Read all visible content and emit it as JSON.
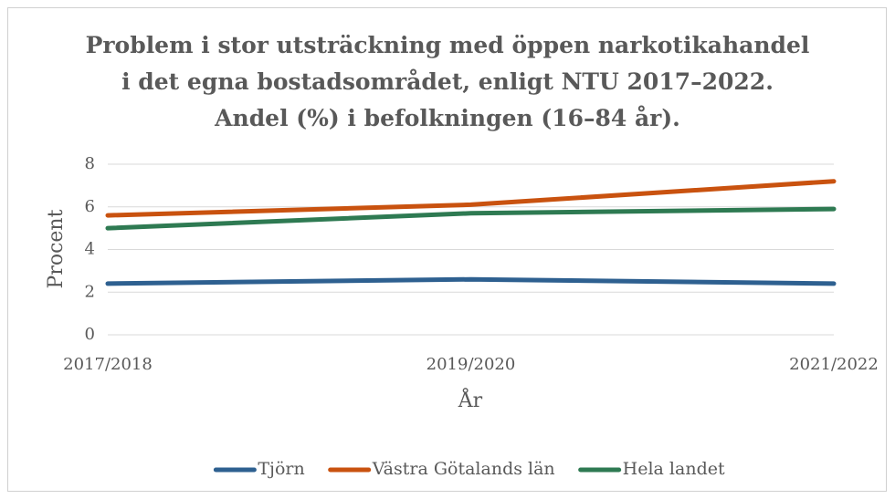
{
  "chart_data": {
    "type": "line",
    "title": "Problem i stor utsträckning med öppen narkotikahandel i det egna bostadsområdet, enligt NTU 2017–2022. Andel (%) i befolkningen (16–84 år).",
    "x_label": "År",
    "y_label": "Procent",
    "categories": [
      "2017/2018",
      "2019/2020",
      "2021/2022"
    ],
    "series": [
      {
        "name": "Tjörn",
        "color": "#2e6090",
        "values": [
          2.4,
          2.6,
          2.4
        ]
      },
      {
        "name": "Västra Götalands län",
        "color": "#c9520f",
        "values": [
          5.6,
          6.1,
          7.2
        ]
      },
      {
        "name": "Hela landet",
        "color": "#2e7a52",
        "values": [
          5.0,
          5.7,
          5.9
        ]
      }
    ],
    "ylim": [
      0,
      8
    ],
    "yticks": [
      0,
      2,
      4,
      6,
      8
    ],
    "grid": true,
    "legend": "bottom"
  }
}
